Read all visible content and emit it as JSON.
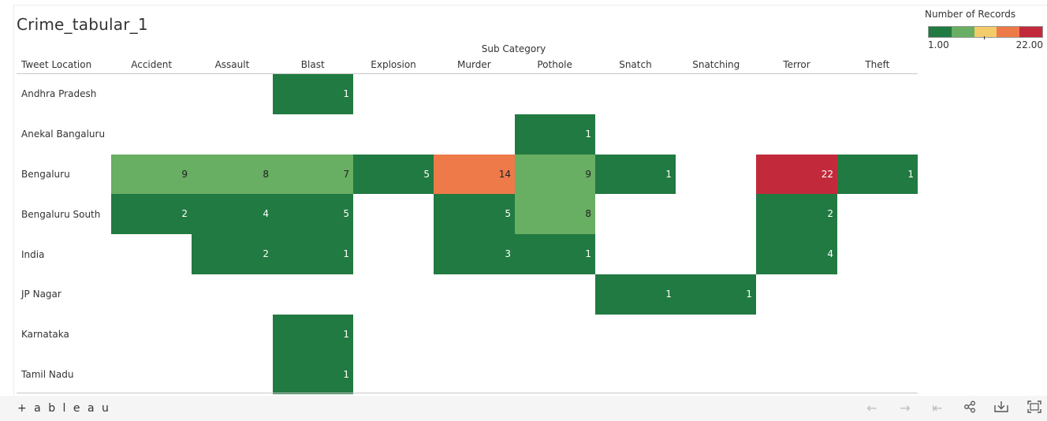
{
  "title": "Crime_tabular_1",
  "chart_data": {
    "type": "heatmap",
    "title": "Crime_tabular_1",
    "column_group_label": "Sub Category",
    "row_header_label": "Tweet Location",
    "columns": [
      "Accident",
      "Assault",
      "Blast",
      "Explosion",
      "Murder",
      "Pothole",
      "Snatch",
      "Snatching",
      "Terror",
      "Theft"
    ],
    "rows": [
      "Andhra Pradesh",
      "Anekal Bangaluru",
      "Bengaluru",
      "Bengaluru South",
      "India",
      "JP Nagar",
      "Karnataka",
      "Tamil Nadu"
    ],
    "values": [
      [
        null,
        null,
        1,
        null,
        null,
        null,
        null,
        null,
        null,
        null
      ],
      [
        null,
        null,
        null,
        null,
        null,
        1,
        null,
        null,
        null,
        null
      ],
      [
        9,
        8,
        7,
        5,
        14,
        9,
        1,
        null,
        22,
        1
      ],
      [
        2,
        4,
        5,
        null,
        5,
        8,
        null,
        null,
        2,
        null
      ],
      [
        null,
        2,
        1,
        null,
        3,
        1,
        null,
        null,
        4,
        null
      ],
      [
        null,
        null,
        null,
        null,
        null,
        null,
        1,
        1,
        null,
        null
      ],
      [
        null,
        null,
        1,
        null,
        null,
        null,
        null,
        null,
        null,
        null
      ],
      [
        null,
        null,
        1,
        null,
        null,
        null,
        null,
        null,
        null,
        null
      ]
    ],
    "legend": {
      "title": "Number of Records",
      "min_label": "1.00",
      "max_label": "22.00",
      "min": 1,
      "max": 22,
      "colors": [
        "#217a41",
        "#68ae63",
        "#f2cb6b",
        "#ee7a4a",
        "#c22a3c"
      ]
    }
  },
  "toolbar": {
    "logo_text": "+ a b l e a u",
    "icons": [
      "undo-icon",
      "redo-icon",
      "revert-icon",
      "share-icon",
      "download-icon",
      "fullscreen-icon"
    ]
  }
}
